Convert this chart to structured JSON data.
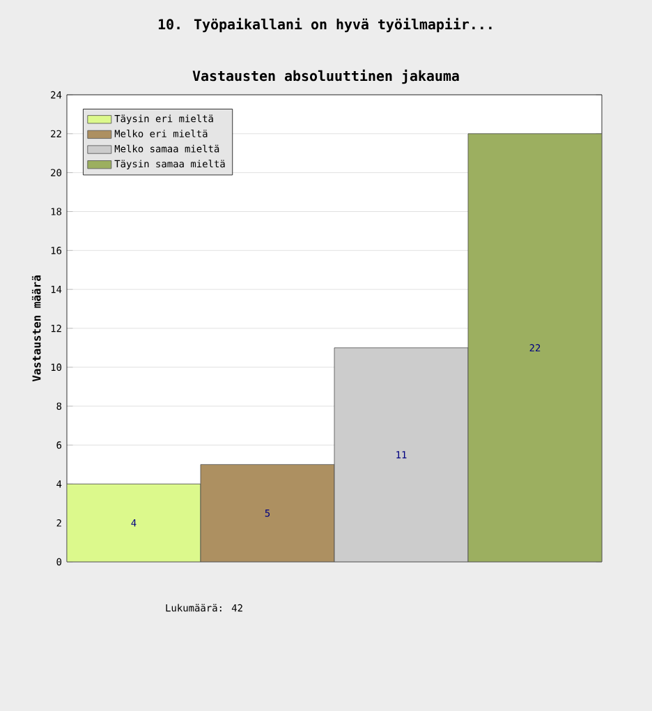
{
  "chart_data": {
    "type": "bar",
    "title": "10. Työpaikallani on hyvä työilmapiir...",
    "subtitle": "Vastausten absoluuttinen jakauma",
    "ylabel": "Vastausten määrä",
    "categories": [
      null,
      null,
      null,
      null
    ],
    "series": [
      {
        "name": "Täysin eri mieltä",
        "color": "#dcf98c",
        "values": [
          4,
          null,
          null,
          null
        ]
      },
      {
        "name": "Melko eri mieltä",
        "color": "#ad9061",
        "values": [
          null,
          5,
          null,
          null
        ]
      },
      {
        "name": "Melko samaa mieltä",
        "color": "#cccccc",
        "values": [
          null,
          null,
          11,
          null
        ]
      },
      {
        "name": "Täysin samaa mieltä",
        "color": "#9caf60",
        "values": [
          null,
          null,
          null,
          22
        ]
      }
    ],
    "ylim": [
      0,
      24
    ],
    "yticks": [
      0,
      2,
      4,
      6,
      8,
      10,
      12,
      14,
      16,
      18,
      20,
      22,
      24
    ],
    "grid": "y",
    "legend": "top left",
    "tick_labels": "y",
    "data_labels": true,
    "annotations": [
      "Lukumäärä: 42"
    ]
  }
}
